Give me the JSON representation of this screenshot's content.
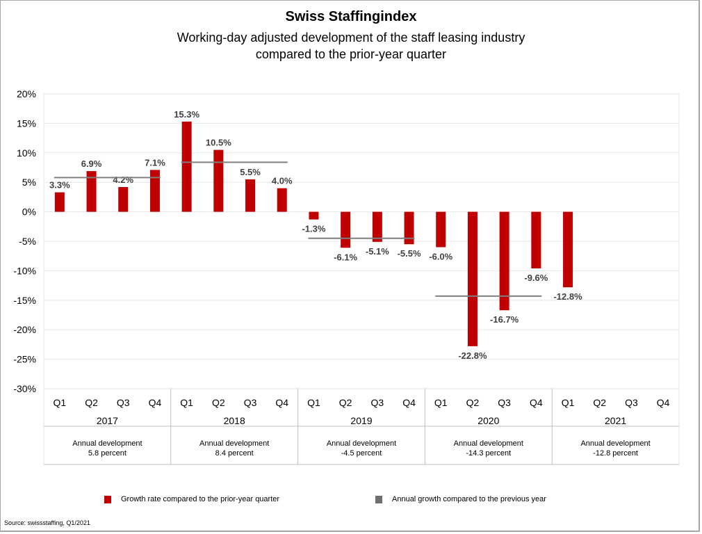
{
  "title": "Swiss Staffingindex",
  "subtitle_line1": "Working-day adjusted development of the staff leasing industry",
  "subtitle_line2": "compared to the prior-year quarter",
  "source": "Source: swissstaffing, Q1/2021",
  "colors": {
    "bar": "#c00000",
    "annual_line": "#7f7f7f",
    "grid": "#e6e6e6",
    "border": "#a6a6a6"
  },
  "chart_data": {
    "type": "bar",
    "title": "Swiss Staffingindex",
    "subtitle": "Working-day adjusted development of the staff leasing industry compared to the prior-year quarter",
    "xlabel": "",
    "ylabel": "",
    "ylim": [
      -30,
      20
    ],
    "yticks": [
      20,
      15,
      10,
      5,
      0,
      -5,
      -10,
      -15,
      -20,
      -25,
      -30
    ],
    "ytick_labels": [
      "20%",
      "15%",
      "10%",
      "5%",
      "0%",
      "-5%",
      "-10%",
      "-15%",
      "-20%",
      "-25%",
      "-30%"
    ],
    "grid": true,
    "years": [
      "2017",
      "2018",
      "2019",
      "2020",
      "2021"
    ],
    "quarters": [
      "Q1",
      "Q2",
      "Q3",
      "Q4"
    ],
    "categories": [
      "2017 Q1",
      "2017 Q2",
      "2017 Q3",
      "2017 Q4",
      "2018 Q1",
      "2018 Q2",
      "2018 Q3",
      "2018 Q4",
      "2019 Q1",
      "2019 Q2",
      "2019 Q3",
      "2019 Q4",
      "2020 Q1",
      "2020 Q2",
      "2020 Q3",
      "2020 Q4",
      "2021 Q1",
      "2021 Q2",
      "2021 Q3",
      "2021 Q4"
    ],
    "series": [
      {
        "name": "Growth rate compared to the prior-year quarter",
        "type": "bar",
        "values": [
          3.3,
          6.9,
          4.2,
          7.1,
          15.3,
          10.5,
          5.5,
          4.0,
          -1.3,
          -6.1,
          -5.1,
          -5.5,
          -6.0,
          -22.8,
          -16.7,
          -9.6,
          -12.8,
          null,
          null,
          null
        ],
        "labels": [
          "3.3%",
          "6.9%",
          "4.2%",
          "7.1%",
          "15.3%",
          "10.5%",
          "5.5%",
          "4.0%",
          "-1.3%",
          "-6.1%",
          "-5.1%",
          "-5.5%",
          "-6.0%",
          "-22.8%",
          "-16.7%",
          "-9.6%",
          "-12.8%",
          "",
          "",
          ""
        ]
      },
      {
        "name": "Annual growth compared to the previous year",
        "type": "line",
        "values_by_year": [
          5.8,
          8.4,
          -4.5,
          -14.3,
          -12.8
        ]
      }
    ],
    "annual_table": [
      {
        "label": "Annual development",
        "value": "5.8 percent"
      },
      {
        "label": "Annual development",
        "value": "8.4 percent"
      },
      {
        "label": "Annual development",
        "value": "-4.5 percent"
      },
      {
        "label": "Annual development",
        "value": "-14.3 percent"
      },
      {
        "label": "Annual development",
        "value": "-12.8 percent"
      }
    ],
    "legend": [
      "Growth rate compared to the prior-year quarter",
      "Annual growth compared to the previous year"
    ],
    "legend_position": "bottom"
  }
}
